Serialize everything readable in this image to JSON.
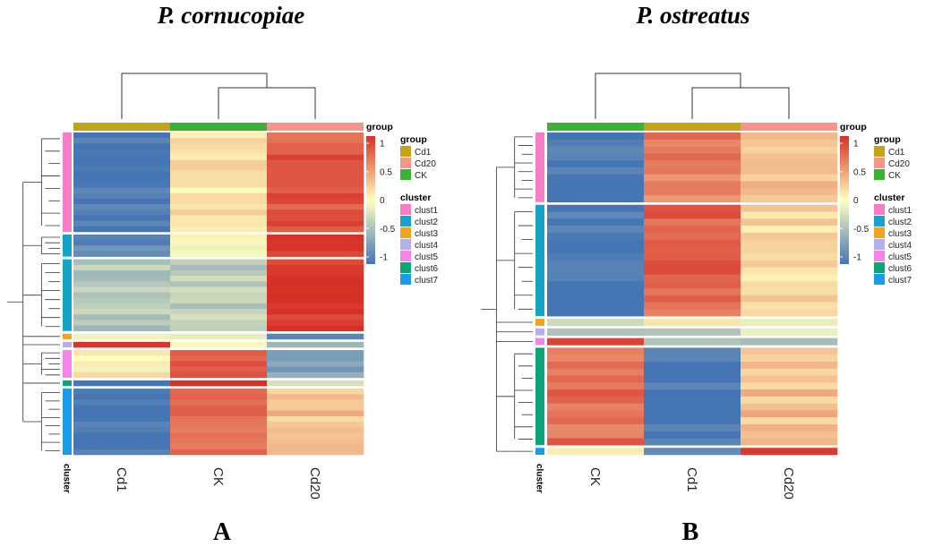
{
  "colors": {
    "Cd1": "#c2a41a",
    "Cd20": "#f6958a",
    "CK": "#3cb233",
    "clust1": "#f77ec6",
    "clust2": "#16a3c8",
    "clust3": "#f2a420",
    "clust4": "#b7aef0",
    "clust5": "#f186e8",
    "clust6": "#0da47a",
    "clust7": "#1c9be9",
    "scale_low": "#4575b4",
    "scale_mid": "#ffffbf",
    "scale_high": "#d73027"
  },
  "chart_data": [
    {
      "type": "heatmap",
      "title": "P. cornucopiae",
      "panel_label": "A",
      "columns": [
        "Cd1",
        "CK",
        "Cd20"
      ],
      "column_groups": [
        "Cd1",
        "CK",
        "Cd20"
      ],
      "row_annotation_title": "cluster",
      "color_scale": {
        "min": -1,
        "max": 1,
        "ticks": [
          1,
          0.5,
          0,
          -0.5,
          -1
        ]
      },
      "legend": {
        "group_title": "group",
        "groups": [
          "Cd1",
          "Cd20",
          "CK"
        ],
        "scale_title": "group",
        "cluster_title": "cluster",
        "clusters": [
          "clust1",
          "clust2",
          "clust3",
          "clust4",
          "clust5",
          "clust6",
          "clust7"
        ]
      },
      "row_blocks": [
        {
          "cluster": "clust1",
          "rows": 18,
          "values": [
            -1.0,
            0.15,
            0.8
          ]
        },
        {
          "cluster": "clust2",
          "rows": 4,
          "values": [
            -0.85,
            -0.05,
            1.0
          ]
        },
        {
          "cluster": "clust2",
          "rows": 13,
          "values": [
            -0.4,
            -0.35,
            1.0
          ]
        },
        {
          "cluster": "clust3",
          "rows": 1,
          "values": [
            -0.2,
            -0.1,
            -0.9
          ]
        },
        {
          "cluster": "clust4",
          "rows": 1,
          "values": [
            0.95,
            0.0,
            -0.6
          ]
        },
        {
          "cluster": "clust5",
          "rows": 5,
          "values": [
            0.05,
            0.85,
            -0.7
          ]
        },
        {
          "cluster": "clust6",
          "rows": 1,
          "values": [
            -0.9,
            1.0,
            -0.3
          ]
        },
        {
          "cluster": "clust7",
          "rows": 12,
          "values": [
            -1.0,
            0.7,
            0.3
          ]
        }
      ]
    },
    {
      "type": "heatmap",
      "title": "P. ostreatus",
      "panel_label": "B",
      "columns": [
        "CK",
        "Cd1",
        "Cd20"
      ],
      "column_groups": [
        "CK",
        "Cd1",
        "Cd20"
      ],
      "row_annotation_title": "cluster",
      "color_scale": {
        "min": -1,
        "max": 1,
        "ticks": [
          1,
          0.5,
          0,
          -0.5,
          -1
        ]
      },
      "legend": {
        "group_title": "group",
        "groups": [
          "Cd1",
          "Cd20",
          "CK"
        ],
        "scale_title": "group",
        "cluster_title": "cluster",
        "clusters": [
          "clust1",
          "clust2",
          "clust3",
          "clust4",
          "clust5",
          "clust6",
          "clust7"
        ]
      },
      "row_blocks": [
        {
          "cluster": "clust1",
          "rows": 10,
          "values": [
            -1.0,
            0.6,
            0.35
          ]
        },
        {
          "cluster": "clust2",
          "rows": 16,
          "values": [
            -1.0,
            0.75,
            0.2
          ]
        },
        {
          "cluster": "clust3",
          "rows": 1,
          "values": [
            -0.2,
            0.1,
            0.0
          ]
        },
        {
          "cluster": "clust4",
          "rows": 1,
          "values": [
            -0.5,
            -0.3,
            0.0
          ]
        },
        {
          "cluster": "clust5",
          "rows": 1,
          "values": [
            0.95,
            -0.35,
            -0.5
          ]
        },
        {
          "cluster": "clust6",
          "rows": 14,
          "values": [
            0.7,
            -1.0,
            0.3
          ]
        },
        {
          "cluster": "clust7",
          "rows": 1,
          "values": [
            0.1,
            -0.8,
            0.9
          ]
        }
      ]
    }
  ]
}
